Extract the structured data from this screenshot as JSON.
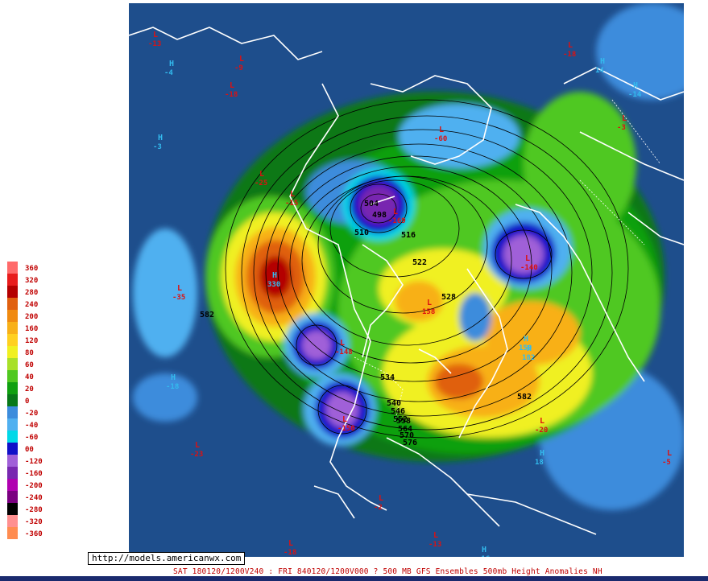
{
  "url_label": "http://models.americanwx.com",
  "caption": "SAT 180120/1200V240 : FRI 840120/1200V000  ? 500 MB GFS Ensembles 500mb Height Anomalies NH",
  "legend": {
    "entries": [
      {
        "label": "360",
        "color": "#ff6a6a"
      },
      {
        "label": "320",
        "color": "#e81c1c"
      },
      {
        "label": "280",
        "color": "#b40000"
      },
      {
        "label": "240",
        "color": "#e06010"
      },
      {
        "label": "200",
        "color": "#f08a10"
      },
      {
        "label": "160",
        "color": "#f8b018"
      },
      {
        "label": "120",
        "color": "#ffd020"
      },
      {
        "label": "80",
        "color": "#f0f020"
      },
      {
        "label": "60",
        "color": "#a8e028"
      },
      {
        "label": "40",
        "color": "#50c820"
      },
      {
        "label": "20",
        "color": "#10a010"
      },
      {
        "label": "0",
        "color": "#087818"
      },
      {
        "label": "-20",
        "color": "#3c8cdc"
      },
      {
        "label": "-40",
        "color": "#50b0f0"
      },
      {
        "label": "-60",
        "color": "#00d8e8"
      },
      {
        "label": "00",
        "color": "#1010c8"
      },
      {
        "label": "-120",
        "color": "#a060d8"
      },
      {
        "label": "-160",
        "color": "#7828b0"
      },
      {
        "label": "-200",
        "color": "#b000b0"
      },
      {
        "label": "-240",
        "color": "#7a0080"
      },
      {
        "label": "-280",
        "color": "#000000"
      },
      {
        "label": "-320",
        "color": "#ff9090"
      },
      {
        "label": "-360",
        "color": "#ff8c50"
      }
    ]
  },
  "map": {
    "centers": [
      {
        "type": "L",
        "value": "-13"
      },
      {
        "type": "L",
        "value": "-9"
      },
      {
        "type": "H",
        "value": "-4"
      },
      {
        "type": "L",
        "value": "-18"
      },
      {
        "type": "H",
        "value": "-3"
      },
      {
        "type": "L",
        "value": "-25"
      },
      {
        "type": "L",
        "value": "-35"
      },
      {
        "type": "H",
        "value": "330"
      },
      {
        "type": "L",
        "value": "-60"
      },
      {
        "type": "L",
        "value": "-15"
      },
      {
        "type": "L",
        "value": "-169"
      },
      {
        "type": "L",
        "value": "-148"
      },
      {
        "type": "L",
        "value": "-150"
      },
      {
        "type": "L",
        "value": "-140"
      },
      {
        "type": "L",
        "value": "158"
      },
      {
        "type": "L",
        "value": "-18"
      },
      {
        "type": "H",
        "value": "14"
      },
      {
        "type": "H",
        "value": "-14"
      },
      {
        "type": "L",
        "value": "-3"
      },
      {
        "type": "H",
        "value": "-18"
      },
      {
        "type": "L",
        "value": "-23"
      },
      {
        "type": "H",
        "value": "150"
      },
      {
        "type": "H",
        "value": "182"
      },
      {
        "type": "L",
        "value": "-20"
      },
      {
        "type": "H",
        "value": "18"
      },
      {
        "type": "L",
        "value": "-2"
      },
      {
        "type": "L",
        "value": "-18"
      },
      {
        "type": "L",
        "value": "-13"
      },
      {
        "type": "L",
        "value": "-5"
      },
      {
        "type": "H",
        "value": "-16"
      }
    ],
    "contours": [
      "504",
      "498",
      "510",
      "516",
      "522",
      "528",
      "534",
      "540",
      "546",
      "552",
      "558",
      "564",
      "570",
      "576",
      "582"
    ],
    "anomaly_labels": [
      "-169",
      "-148",
      "-150",
      "-140",
      "330"
    ]
  }
}
